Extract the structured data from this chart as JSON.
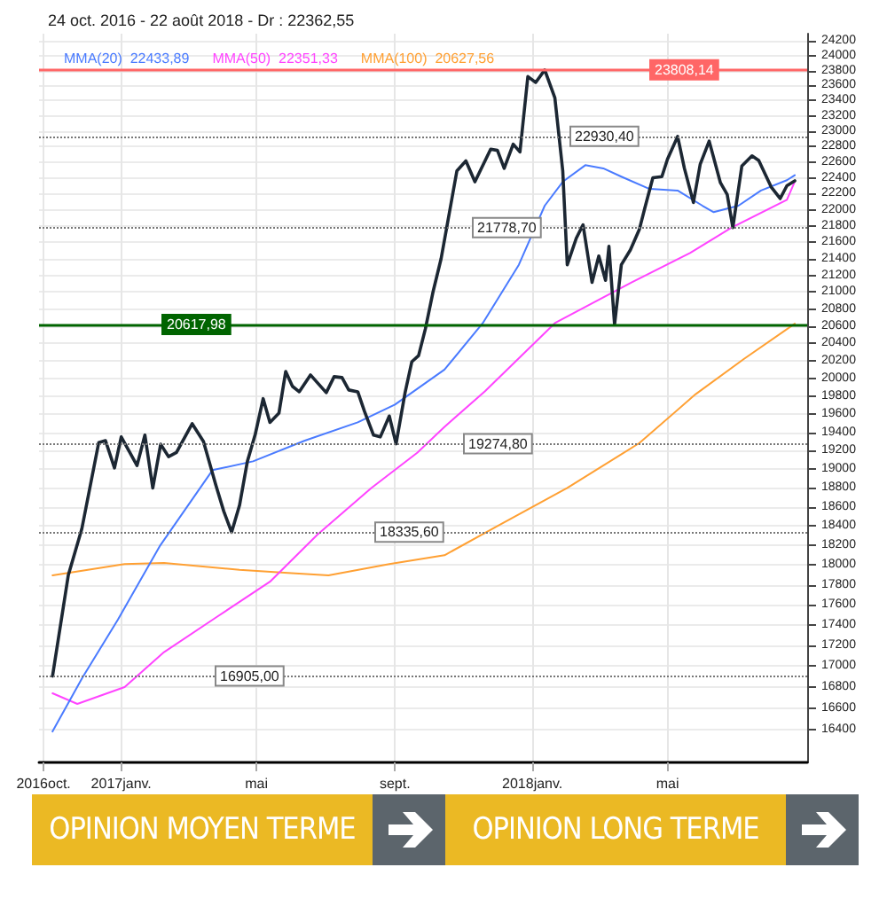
{
  "chart_data": {
    "type": "line",
    "title": "24 oct. 2016 - 22 août 2018 - Dr : 22362,55",
    "xlim": [
      "2016-10-20",
      "2018-09-02"
    ],
    "xticks": [
      {
        "value": "2016-10-24",
        "label": "2016oct."
      },
      {
        "value": "2017-01-01",
        "label": "2017janv."
      },
      {
        "value": "2017-05-01",
        "label": "mai"
      },
      {
        "value": "2017-09-01",
        "label": "sept."
      },
      {
        "value": "2018-01-01",
        "label": "2018janv."
      },
      {
        "value": "2018-05-01",
        "label": "mai"
      }
    ],
    "ylim": [
      16100,
      24300
    ],
    "log": true,
    "yticks": [
      16400,
      16600,
      16800,
      17000,
      17200,
      17400,
      17600,
      17800,
      18000,
      18200,
      18400,
      18600,
      18800,
      19000,
      19200,
      19400,
      19600,
      19800,
      20000,
      20200,
      20400,
      20600,
      20800,
      21000,
      21200,
      21400,
      21600,
      21800,
      22000,
      22200,
      22400,
      22600,
      22800,
      23000,
      23200,
      23400,
      23600,
      23800,
      24000,
      24200
    ],
    "grid": true,
    "legend": "top left",
    "marker": "none",
    "series": [
      {
        "color": "#1c2733",
        "x": [
          "2016-11-01",
          "2016-11-15",
          "2016-11-27",
          "2016-12-12",
          "2016-12-18",
          "2016-12-26",
          "2017-01-01",
          "2017-01-15",
          "2017-01-22",
          "2017-01-29",
          "2017-02-05",
          "2017-02-12",
          "2017-02-19",
          "2017-03-05",
          "2017-03-15",
          "2017-03-26",
          "2017-04-02",
          "2017-04-09",
          "2017-04-16",
          "2017-04-23",
          "2017-04-30",
          "2017-05-07",
          "2017-05-13",
          "2017-05-21",
          "2017-05-27",
          "2017-06-02",
          "2017-06-08",
          "2017-06-18",
          "2017-07-02",
          "2017-07-09",
          "2017-07-16",
          "2017-07-22",
          "2017-07-30",
          "2017-08-05",
          "2017-08-13",
          "2017-08-19",
          "2017-08-27",
          "2017-09-02",
          "2017-09-10",
          "2017-09-16",
          "2017-09-22",
          "2017-09-28",
          "2017-10-05",
          "2017-10-12",
          "2017-10-26",
          "2017-11-03",
          "2017-11-11",
          "2017-11-25",
          "2017-12-01",
          "2017-12-07",
          "2017-12-15",
          "2017-12-21",
          "2017-12-28",
          "2018-01-04",
          "2018-01-12",
          "2018-01-21",
          "2018-01-28",
          "2018-02-01",
          "2018-02-09",
          "2018-02-15",
          "2018-02-23",
          "2018-03-01",
          "2018-03-07",
          "2018-03-10",
          "2018-03-15",
          "2018-03-21",
          "2018-03-29",
          "2018-04-06",
          "2018-04-11",
          "2018-04-18",
          "2018-04-26",
          "2018-05-01",
          "2018-05-10",
          "2018-05-16",
          "2018-05-24",
          "2018-05-30",
          "2018-06-07",
          "2018-06-17",
          "2018-06-23",
          "2018-06-28",
          "2018-07-06",
          "2018-07-15",
          "2018-07-21",
          "2018-08-01",
          "2018-08-09",
          "2018-08-15",
          "2018-08-22"
        ],
        "values": [
          16905,
          17896,
          18371,
          19288,
          19310,
          19014,
          19350,
          19040,
          19370,
          18800,
          19270,
          19135,
          19180,
          19495,
          19300,
          18830,
          18555,
          18336,
          18616,
          19085,
          19380,
          19773,
          19510,
          19611,
          20078,
          19911,
          19850,
          20040,
          19840,
          20020,
          20010,
          19870,
          19850,
          19630,
          19370,
          19350,
          19580,
          19275,
          19840,
          20190,
          20260,
          20566,
          21013,
          21400,
          22488,
          22615,
          22350,
          22766,
          22750,
          22520,
          22830,
          22730,
          23718,
          23640,
          23808,
          23434,
          22488,
          21326,
          21648,
          21814,
          21115,
          21432,
          21140,
          21550,
          20618,
          21326,
          21505,
          21756,
          22028,
          22400,
          22415,
          22638,
          22930,
          22520,
          22090,
          22570,
          22870,
          22337,
          22190,
          21779,
          22550,
          22680,
          22620,
          22285,
          22139,
          22300,
          22362.55
        ]
      },
      {
        "name": "MMA(20)  22433,89",
        "color": "#4a7bff",
        "x": [
          "2016-11-01",
          "2016-11-27",
          "2016-12-29",
          "2017-02-04",
          "2017-03-23",
          "2017-04-28",
          "2017-06-13",
          "2017-07-30",
          "2017-09-01",
          "2017-10-15",
          "2017-11-18",
          "2017-12-20",
          "2018-01-12",
          "2018-01-28",
          "2018-02-17",
          "2018-03-05",
          "2018-03-21",
          "2018-04-15",
          "2018-05-10",
          "2018-06-01",
          "2018-06-11",
          "2018-07-03",
          "2018-07-23",
          "2018-08-15",
          "2018-08-22"
        ],
        "values": [
          16384,
          16881,
          17451,
          18189,
          18990,
          19085,
          19310,
          19510,
          19707,
          20100,
          20635,
          21326,
          22050,
          22350,
          22560,
          22520,
          22415,
          22260,
          22240,
          22050,
          21970,
          22050,
          22240,
          22370,
          22433.89
        ]
      },
      {
        "name": "MMA(50)  22351,33",
        "color": "#ff44ff",
        "x": [
          "2016-11-01",
          "2016-11-23",
          "2017-01-04",
          "2017-02-08",
          "2017-03-27",
          "2017-05-13",
          "2017-06-24",
          "2017-08-11",
          "2017-09-21",
          "2017-10-15",
          "2017-11-20",
          "2018-01-21",
          "2018-03-30",
          "2018-05-21",
          "2018-06-27",
          "2018-08-15",
          "2018-08-22"
        ],
        "values": [
          16741,
          16641,
          16800,
          17135,
          17480,
          17830,
          18309,
          18800,
          19180,
          19460,
          19857,
          20635,
          21115,
          21468,
          21779,
          22124,
          22351.33
        ]
      },
      {
        "name": "MMA(100)  20627,56",
        "color": "#ffa033",
        "x": [
          "2016-11-01",
          "2017-01-04",
          "2017-02-08",
          "2017-04-16",
          "2017-05-29",
          "2017-07-04",
          "2017-08-27",
          "2017-10-15",
          "2017-12-01",
          "2018-02-01",
          "2018-04-06",
          "2018-05-26",
          "2018-07-08",
          "2018-08-22"
        ],
        "values": [
          17895,
          18009,
          18020,
          17950,
          17920,
          17895,
          18009,
          18099,
          18401,
          18800,
          19283,
          19823,
          20223,
          20627.56
        ]
      }
    ],
    "ref_lines": [
      {
        "axis": "y",
        "value": 23808.14,
        "label": "23808,14",
        "color": "#ff6666",
        "line_style": "solid"
      },
      {
        "axis": "y",
        "value": 22930.4,
        "label": "22930,40",
        "color": "#777777",
        "line_style": "dotted"
      },
      {
        "axis": "y",
        "value": 21778.7,
        "label": "21778,70",
        "color": "#777777",
        "line_style": "dotted"
      },
      {
        "axis": "y",
        "value": 20617.98,
        "label": "20617,98",
        "color": "#006400",
        "line_style": "solid"
      },
      {
        "axis": "y",
        "value": 19274.8,
        "label": "19274,80",
        "color": "#777777",
        "line_style": "dotted"
      },
      {
        "axis": "y",
        "value": 18335.6,
        "label": "18335,60",
        "color": "#777777",
        "line_style": "dotted"
      },
      {
        "axis": "y",
        "value": 16905,
        "label": "16905,00",
        "color": "#777777",
        "line_style": "dotted"
      }
    ],
    "annotations": [
      "OPINION MOYEN TERME",
      "OPINION LONG TERME"
    ]
  }
}
